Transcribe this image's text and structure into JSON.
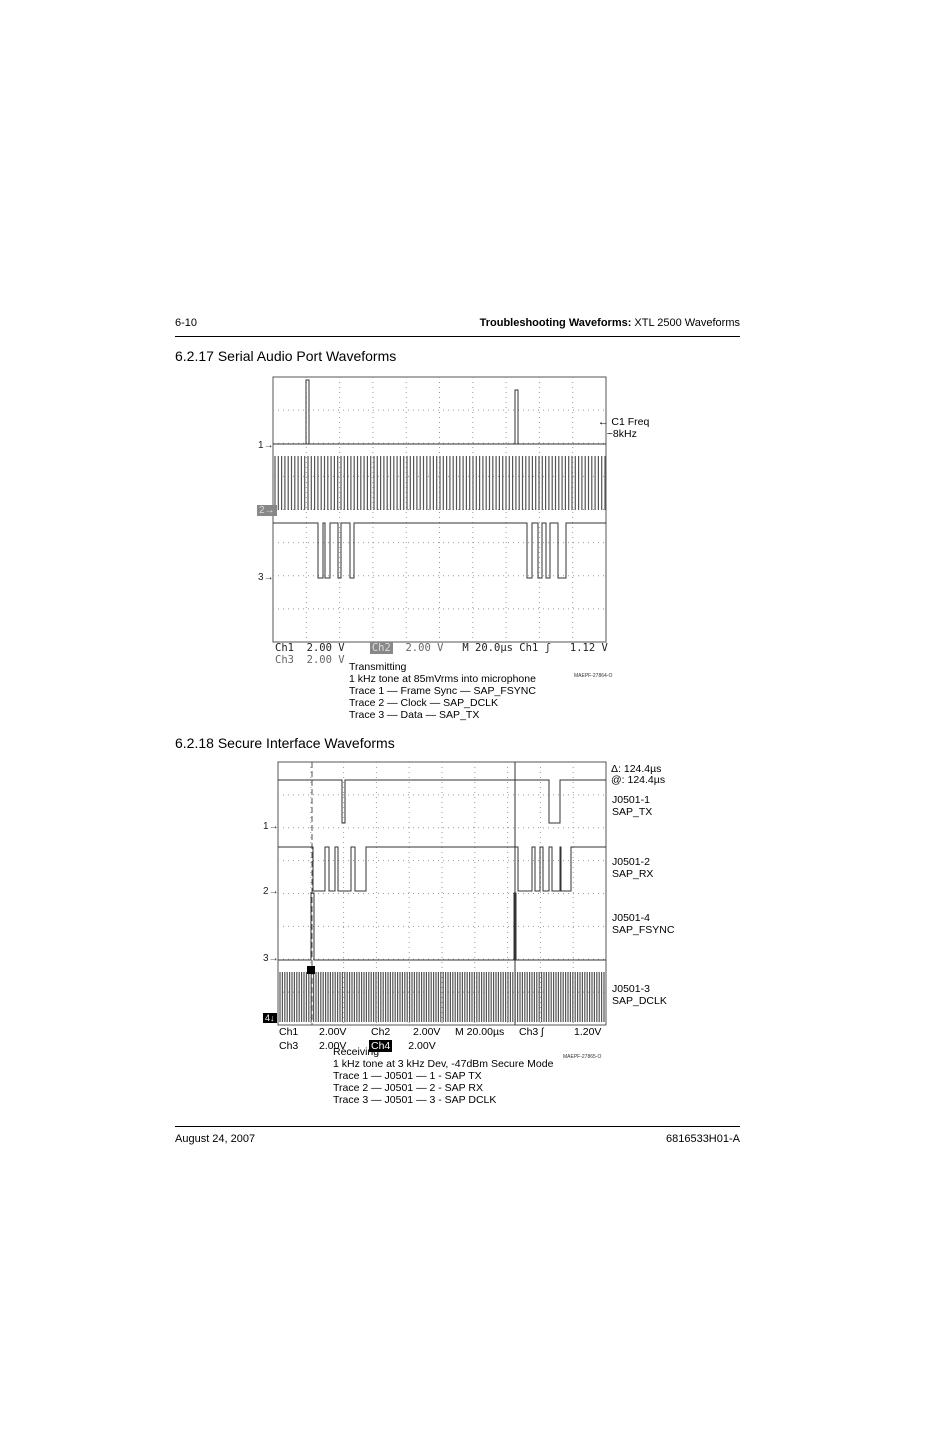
{
  "header": {
    "page_number": "6-10",
    "title_bold": "Troubleshooting Waveforms:",
    "title_rest": " XTL 2500 Waveforms"
  },
  "section1": {
    "title": "6.2.17  Serial Audio Port Waveforms",
    "marker_labels": [
      "1",
      "2",
      "3"
    ],
    "right_label": [
      "C1 Freq",
      "~8kHz"
    ],
    "readout": {
      "ch1": "Ch1",
      "ch1_v": "2.00 V",
      "ch2": "Ch2",
      "ch2_v": "2.00 V",
      "timebase": "M 20.0µs",
      "trig": "Ch1 ʃ",
      "trig_v": "1.12 V",
      "ch3": "Ch3",
      "ch3_v": "2.00 V"
    },
    "figure_id": "MAEPF-27864-O",
    "caption": [
      "Transmitting",
      "1 kHz tone at 85mVrms into microphone",
      "Trace 1 — Frame Sync — SAP_FSYNC",
      "Trace 2 — Clock — SAP_DCLK",
      "Trace 3 — Data — SAP_TX"
    ]
  },
  "section2": {
    "title": "6.2.18  Secure Interface Waveforms",
    "marker_labels": [
      "1",
      "2",
      "3",
      "4"
    ],
    "cursor": {
      "delta": "Δ: 124.4µs",
      "at": "@: 124.4µs"
    },
    "trace_labels": [
      [
        "J0501-1",
        "SAP_TX"
      ],
      [
        "J0501-2",
        "SAP_RX"
      ],
      [
        "J0501-4",
        "SAP_FSYNC"
      ],
      [
        "J0501-3",
        "SAP_DCLK"
      ]
    ],
    "readout": {
      "ch1": "Ch1",
      "ch1_v": "2.00V",
      "ch2": "Ch2",
      "ch2_v": "2.00V",
      "timebase": "M 20.00µs",
      "trig": "Ch3 ʃ",
      "trig_v": "1.20V",
      "ch3": "Ch3",
      "ch3_v": "2.00V",
      "ch4": "Ch4",
      "ch4_v": "2.00V"
    },
    "figure_id": "MAEPF-27865-O",
    "caption": [
      "Receiving",
      "1 kHz tone at 3 kHz Dev, -47dBm Secure Mode",
      "Trace 1 — J0501 — 1 - SAP TX",
      "Trace 2 — J0501 — 2 - SAP RX",
      "Trace 3 — J0501 — 3 - SAP DCLK"
    ]
  },
  "footer": {
    "date": "August 24, 2007",
    "doc_number": "6816533H01-A"
  }
}
